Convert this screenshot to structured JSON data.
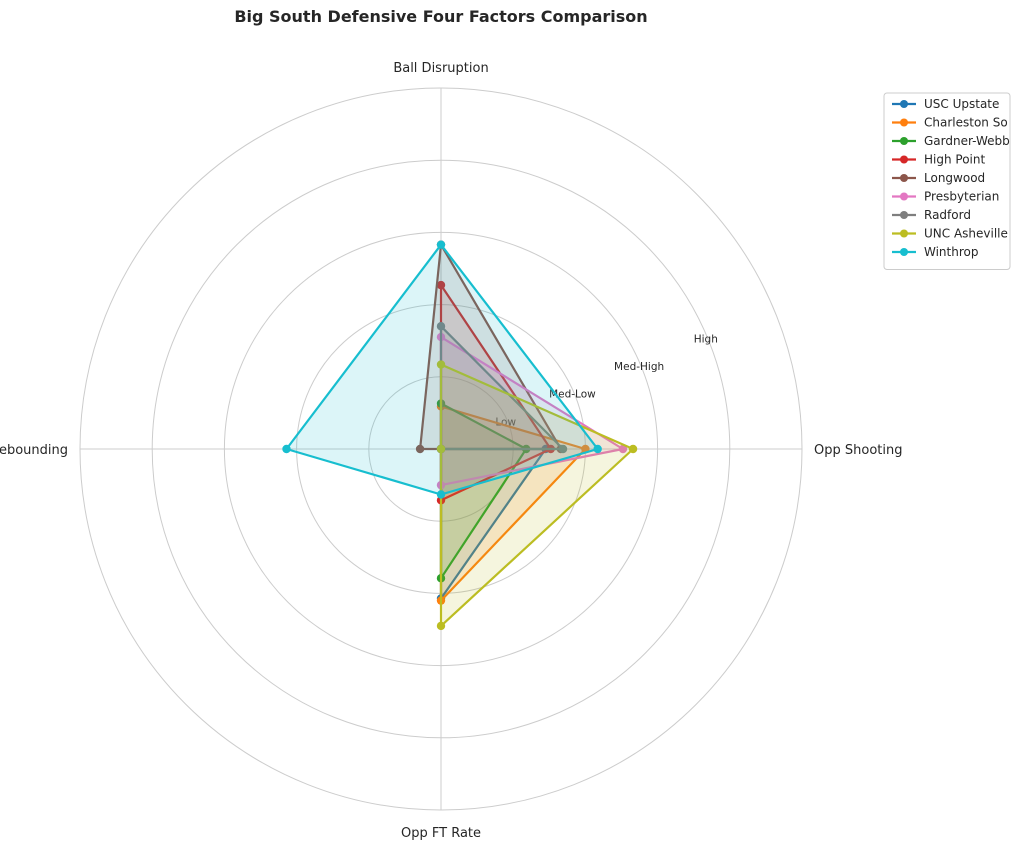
{
  "chart_data": {
    "type": "radar",
    "title": "Big South Defensive Four Factors Comparison",
    "axes": [
      "Ball Disruption",
      "Opp Shooting",
      "Opp FT Rate",
      "Def Rebounding"
    ],
    "ring_labels": [
      "Low",
      "Med-Low",
      "Med-High",
      "High"
    ],
    "ring_levels": [
      1,
      2,
      3,
      4
    ],
    "r_max": 5,
    "grid": true,
    "legend_position": "top-right",
    "series": [
      {
        "name": "USC Upstate",
        "color": "#1f77b4",
        "values": [
          0.0,
          1.45,
          2.07,
          0.0
        ]
      },
      {
        "name": "Charleston So",
        "color": "#ff7f0e",
        "values": [
          0.59,
          2.0,
          2.1,
          0.0
        ]
      },
      {
        "name": "Gardner-Webb",
        "color": "#2ca02c",
        "values": [
          0.63,
          1.18,
          1.79,
          0.0
        ]
      },
      {
        "name": "High Point",
        "color": "#d62728",
        "values": [
          2.27,
          1.52,
          0.71,
          0.0
        ]
      },
      {
        "name": "Longwood",
        "color": "#8c564b",
        "values": [
          2.83,
          1.66,
          0.0,
          0.29
        ]
      },
      {
        "name": "Presbyterian",
        "color": "#e377c2",
        "values": [
          1.55,
          2.52,
          0.5,
          0.0
        ]
      },
      {
        "name": "Radford",
        "color": "#7f7f7f",
        "values": [
          1.7,
          1.69,
          0.0,
          0.0
        ]
      },
      {
        "name": "UNC Asheville",
        "color": "#bcbd22",
        "values": [
          1.17,
          2.66,
          2.45,
          0.0
        ]
      },
      {
        "name": "Winthrop",
        "color": "#17becf",
        "values": [
          2.83,
          2.17,
          0.63,
          2.14
        ]
      }
    ]
  }
}
